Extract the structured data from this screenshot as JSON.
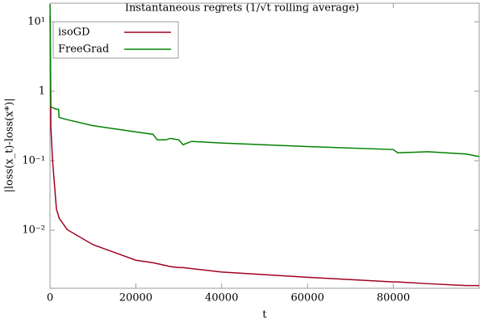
{
  "chart_data": {
    "type": "line",
    "title": "Instantaneous regrets (1/√t rolling average)",
    "xlabel": "t",
    "ylabel": "|loss(x_t)-loss(x*)|",
    "yscale": "log",
    "legend": "upper left",
    "x": [
      10,
      200,
      600,
      1500,
      2000,
      2100,
      4000,
      10000,
      20000,
      24000,
      25000,
      27000,
      28000,
      30000,
      31000,
      33000,
      40000,
      60000,
      80000,
      81000,
      88000,
      97000,
      100000
    ],
    "series": [
      {
        "name": "isoGD",
        "color": "#a00020",
        "values": [
          12,
          0.3,
          0.1,
          0.02,
          0.016,
          0.015,
          0.0102,
          0.0062,
          0.0037,
          0.0034,
          0.0033,
          0.0031,
          0.003,
          0.0029,
          0.0029,
          0.0028,
          0.0025,
          0.0021,
          0.0018,
          0.0018,
          0.0017,
          0.0016,
          0.0016
        ]
      },
      {
        "name": "FreeGrad",
        "color": "#008000",
        "values": [
          18,
          0.6,
          0.58,
          0.55,
          0.55,
          0.42,
          0.39,
          0.32,
          0.26,
          0.24,
          0.2,
          0.2,
          0.21,
          0.2,
          0.17,
          0.19,
          0.18,
          0.16,
          0.145,
          0.13,
          0.135,
          0.125,
          0.115
        ]
      }
    ],
    "xlim": [
      0,
      100000
    ],
    "xticks": [
      0,
      20000,
      40000,
      60000,
      80000
    ],
    "ylim": [
      0.00146,
      18.5
    ],
    "yticks": [
      {
        "value": 10,
        "label": "10¹"
      },
      1,
      {
        "value": 0.1,
        "label": "10⁻¹"
      },
      {
        "value": 0.01,
        "label": "10⁻²"
      }
    ]
  }
}
